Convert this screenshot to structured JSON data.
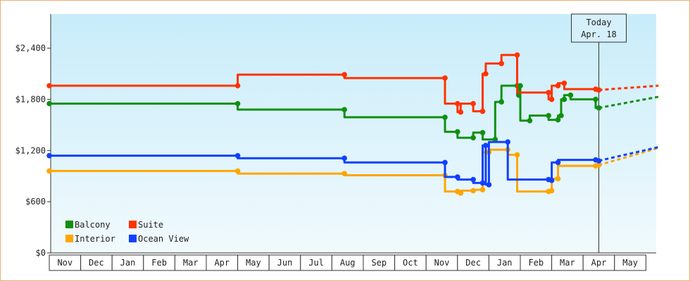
{
  "chart_data": {
    "type": "line",
    "title": "",
    "xlabel": "",
    "ylabel": "",
    "y_tick_labels": [
      "$0",
      "$600",
      "$1,200",
      "$1,800",
      "$2,400"
    ],
    "y_tick_values": [
      0,
      600,
      1200,
      1800,
      2400
    ],
    "ylim": [
      0,
      2800
    ],
    "x_tick_labels": [
      "Nov",
      "Dec",
      "Jan",
      "Feb",
      "Mar",
      "Apr",
      "May",
      "Jun",
      "Jul",
      "Aug",
      "Sep",
      "Oct",
      "Nov",
      "Dec",
      "Jan",
      "Feb",
      "Mar",
      "Apr",
      "May"
    ],
    "xlim": [
      0,
      19.4
    ],
    "grid": false,
    "legend_position": "bottom-left",
    "marker_line": {
      "x": 17.5,
      "label_line1": "Today",
      "label_line2": "Apr. 18"
    },
    "forecast_end_x": 19.4,
    "series": [
      {
        "name": "Balcony",
        "color": "#109010",
        "points": [
          [
            0,
            1750
          ],
          [
            6.0,
            1750
          ],
          [
            6.0,
            1680
          ],
          [
            9.4,
            1680
          ],
          [
            9.4,
            1590
          ],
          [
            12.6,
            1590
          ],
          [
            12.6,
            1420
          ],
          [
            13.0,
            1420
          ],
          [
            13.0,
            1350
          ],
          [
            13.5,
            1350
          ],
          [
            13.5,
            1410
          ],
          [
            13.8,
            1410
          ],
          [
            13.8,
            1330
          ],
          [
            14.2,
            1330
          ],
          [
            14.2,
            1770
          ],
          [
            14.4,
            1770
          ],
          [
            14.4,
            1960
          ],
          [
            14.9,
            1960
          ],
          [
            14.9,
            1850
          ],
          [
            14.95,
            1850
          ],
          [
            14.95,
            1960
          ],
          [
            15.0,
            1960
          ],
          [
            15.0,
            1550
          ],
          [
            15.3,
            1550
          ],
          [
            15.3,
            1610
          ],
          [
            15.9,
            1610
          ],
          [
            15.9,
            1560
          ],
          [
            16.2,
            1560
          ],
          [
            16.2,
            1610
          ],
          [
            16.3,
            1610
          ],
          [
            16.3,
            1800
          ],
          [
            16.4,
            1800
          ],
          [
            16.4,
            1850
          ],
          [
            16.6,
            1850
          ],
          [
            16.6,
            1800
          ],
          [
            17.4,
            1800
          ],
          [
            17.4,
            1700
          ],
          [
            17.5,
            1700
          ]
        ],
        "forecast_end": 1830
      },
      {
        "name": "Suite",
        "color": "#ff3300",
        "points": [
          [
            0,
            1960
          ],
          [
            6.0,
            1960
          ],
          [
            6.0,
            2090
          ],
          [
            9.4,
            2090
          ],
          [
            9.4,
            2050
          ],
          [
            12.6,
            2050
          ],
          [
            12.6,
            1750
          ],
          [
            13.0,
            1750
          ],
          [
            13.0,
            1650
          ],
          [
            13.1,
            1650
          ],
          [
            13.1,
            1750
          ],
          [
            13.5,
            1750
          ],
          [
            13.5,
            1660
          ],
          [
            13.8,
            1660
          ],
          [
            13.8,
            2100
          ],
          [
            13.9,
            2100
          ],
          [
            13.9,
            2220
          ],
          [
            14.4,
            2220
          ],
          [
            14.4,
            2320
          ],
          [
            14.9,
            2320
          ],
          [
            14.9,
            1880
          ],
          [
            15.9,
            1880
          ],
          [
            15.9,
            1800
          ],
          [
            16.0,
            1800
          ],
          [
            16.0,
            1960
          ],
          [
            16.2,
            1960
          ],
          [
            16.2,
            1990
          ],
          [
            16.4,
            1990
          ],
          [
            16.4,
            1920
          ],
          [
            17.4,
            1920
          ],
          [
            17.4,
            1910
          ],
          [
            17.5,
            1910
          ]
        ],
        "forecast_end": 1960
      },
      {
        "name": "Interior",
        "color": "#ffa500",
        "points": [
          [
            0,
            960
          ],
          [
            6.0,
            960
          ],
          [
            6.0,
            930
          ],
          [
            9.4,
            930
          ],
          [
            9.4,
            910
          ],
          [
            12.6,
            910
          ],
          [
            12.6,
            720
          ],
          [
            13.0,
            720
          ],
          [
            13.0,
            700
          ],
          [
            13.1,
            700
          ],
          [
            13.1,
            730
          ],
          [
            13.5,
            730
          ],
          [
            13.5,
            740
          ],
          [
            13.8,
            740
          ],
          [
            13.8,
            1180
          ],
          [
            14.0,
            1180
          ],
          [
            14.0,
            1210
          ],
          [
            14.6,
            1210
          ],
          [
            14.6,
            1150
          ],
          [
            14.9,
            1150
          ],
          [
            14.9,
            720
          ],
          [
            15.9,
            720
          ],
          [
            15.9,
            730
          ],
          [
            16.0,
            730
          ],
          [
            16.0,
            870
          ],
          [
            16.2,
            870
          ],
          [
            16.2,
            1020
          ],
          [
            17.4,
            1020
          ],
          [
            17.4,
            1030
          ],
          [
            17.5,
            1030
          ]
        ],
        "forecast_end": 1230
      },
      {
        "name": "Ocean View",
        "color": "#1040ff",
        "points": [
          [
            0,
            1140
          ],
          [
            6.0,
            1140
          ],
          [
            6.0,
            1110
          ],
          [
            9.4,
            1110
          ],
          [
            9.4,
            1060
          ],
          [
            12.6,
            1060
          ],
          [
            12.6,
            890
          ],
          [
            13.0,
            890
          ],
          [
            13.0,
            860
          ],
          [
            13.5,
            860
          ],
          [
            13.5,
            820
          ],
          [
            13.8,
            820
          ],
          [
            13.8,
            1260
          ],
          [
            13.9,
            1260
          ],
          [
            13.9,
            800
          ],
          [
            14.0,
            800
          ],
          [
            14.0,
            1300
          ],
          [
            14.6,
            1300
          ],
          [
            14.6,
            860
          ],
          [
            15.9,
            860
          ],
          [
            15.9,
            850
          ],
          [
            16.0,
            850
          ],
          [
            16.0,
            1060
          ],
          [
            16.2,
            1060
          ],
          [
            16.2,
            1090
          ],
          [
            17.4,
            1090
          ],
          [
            17.4,
            1080
          ],
          [
            17.5,
            1080
          ]
        ],
        "forecast_end": 1240
      }
    ]
  }
}
